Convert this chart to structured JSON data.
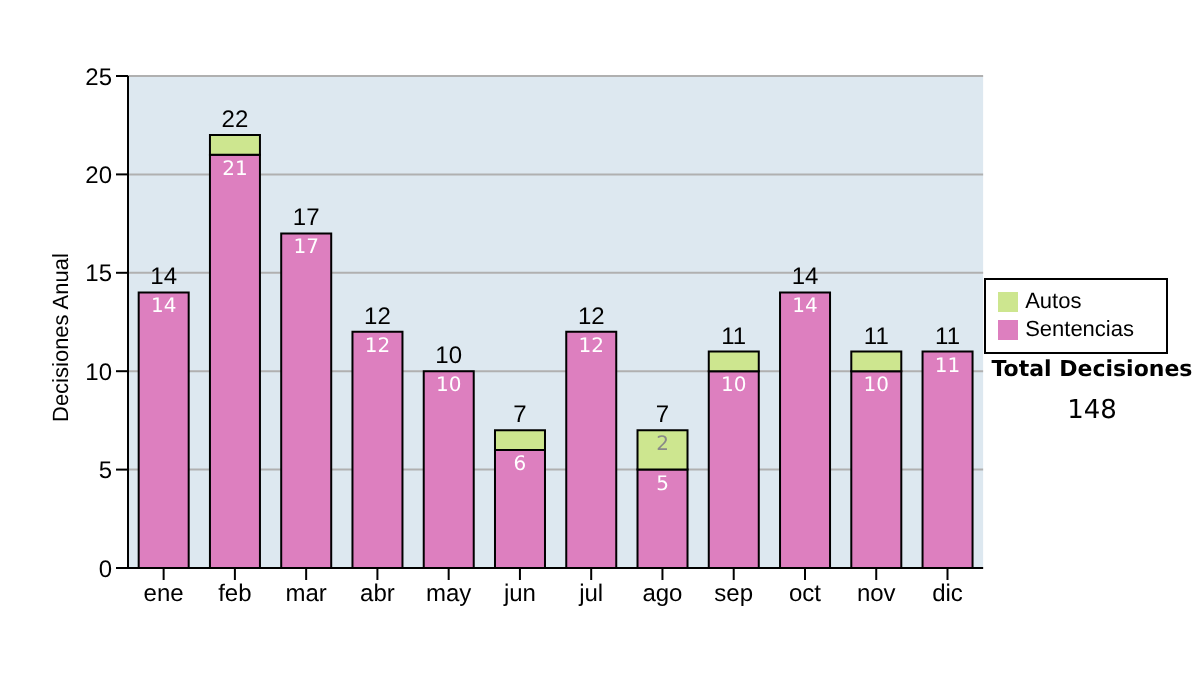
{
  "chart_data": {
    "type": "bar",
    "stacked": true,
    "ylabel": "Decisiones Anual",
    "categories": [
      "ene",
      "feb",
      "mar",
      "abr",
      "may",
      "jun",
      "jul",
      "ago",
      "sep",
      "oct",
      "nov",
      "dic"
    ],
    "series": [
      {
        "name": "Sentencias",
        "color": "#dd7fbf",
        "values": [
          14,
          21,
          17,
          12,
          10,
          6,
          12,
          5,
          10,
          14,
          10,
          11
        ],
        "value_labels": [
          "14",
          "21",
          "17",
          "12",
          "10",
          "6",
          "12",
          "5",
          "10",
          "14",
          "10",
          "11"
        ]
      },
      {
        "name": "Autos",
        "color": "#cde68f",
        "values": [
          0,
          1,
          0,
          0,
          0,
          1,
          0,
          2,
          1,
          0,
          1,
          0
        ],
        "value_labels": [
          null,
          null,
          null,
          null,
          null,
          null,
          null,
          "2",
          null,
          null,
          null,
          null
        ]
      }
    ],
    "totals": [
      "14",
      "22",
      "17",
      "12",
      "10",
      "7",
      "12",
      "7",
      "11",
      "14",
      "11",
      "11"
    ],
    "ylim": [
      0,
      25
    ],
    "yticks": [
      0,
      5,
      10,
      15,
      20,
      25
    ],
    "grid": "y",
    "legend": "right",
    "annotations": [
      "Total Decisiones",
      "148"
    ]
  }
}
